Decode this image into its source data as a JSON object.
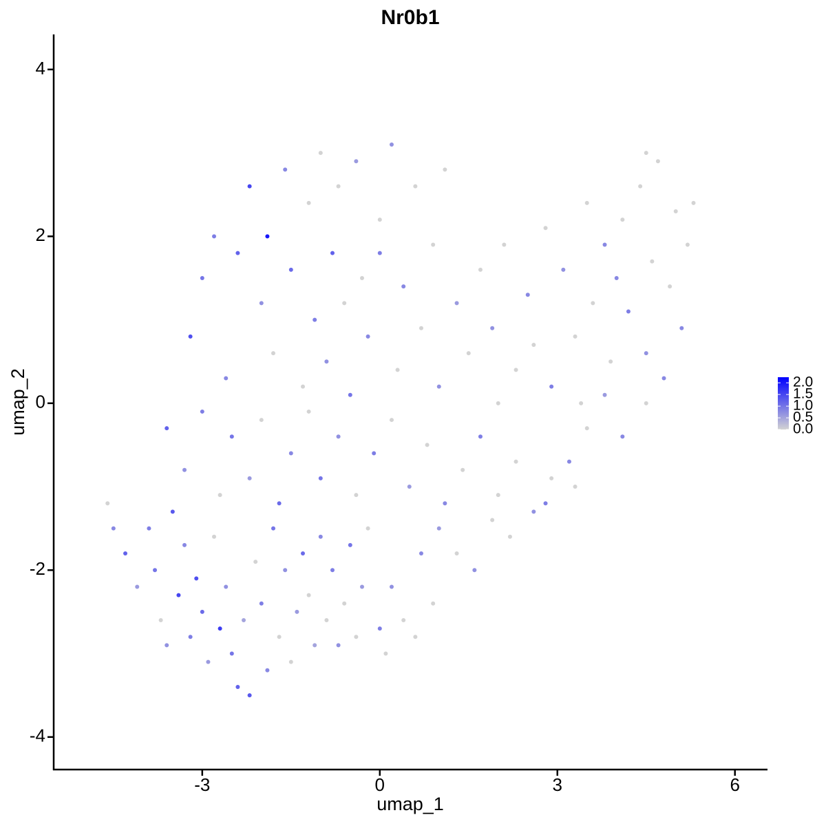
{
  "chart_data": {
    "type": "scatter",
    "title": "Nr0b1",
    "x_label": "umap_1",
    "y_label": "umap_2",
    "xlim": [
      -5.51,
      6.55
    ],
    "ylim": [
      -4.39,
      4.42
    ],
    "xticks": [
      -3,
      0,
      3,
      6
    ],
    "yticks": [
      -4,
      -2,
      0,
      2,
      4
    ],
    "color_low": "#d3d3d3",
    "color_high": "#0000ff",
    "colorlim": [
      0,
      2.24
    ],
    "colorticks": [
      {
        "value": 0,
        "label": "0.0"
      },
      {
        "value": 0.5,
        "label": "0.5"
      },
      {
        "value": 1,
        "label": "1.0"
      },
      {
        "value": 1.5,
        "label": "1.5"
      },
      {
        "value": 2,
        "label": "2.0"
      }
    ],
    "x": [
      -4.6,
      -4.5,
      -4.3,
      -4.1,
      -3.9,
      -3.8,
      -3.7,
      -3.6,
      -3.5,
      -3.4,
      -3.3,
      -3.2,
      -3.1,
      -3.0,
      -2.9,
      -2.8,
      -2.7,
      -2.6,
      -2.5,
      -2.4,
      -2.3,
      -2.2,
      -2.1,
      -2.0,
      -1.9,
      -1.8,
      -1.7,
      -1.6,
      -1.5,
      -1.4,
      -1.3,
      -1.2,
      -1.1,
      -1.0,
      -0.9,
      -0.8,
      -0.7,
      -0.6,
      -0.5,
      -0.4,
      -0.3,
      -0.2,
      0.0,
      0.1,
      0.2,
      0.4,
      0.6,
      0.7,
      0.9,
      1.0,
      -3.6,
      -3.3,
      -3.0,
      -2.7,
      -2.5,
      -2.2,
      -2.0,
      -1.7,
      -1.5,
      -1.2,
      -1.0,
      -0.7,
      -0.4,
      -0.1,
      0.2,
      0.5,
      0.8,
      1.1,
      1.4,
      1.7,
      2.0,
      2.3,
      2.6,
      2.9,
      3.2,
      3.5,
      3.8,
      4.1,
      4.5,
      1.3,
      1.6,
      1.9,
      2.2,
      2.8,
      3.3,
      -3.2,
      -3.0,
      -2.8,
      -2.6,
      -2.4,
      -2.2,
      -2.0,
      -1.9,
      -1.8,
      -1.6,
      -1.5,
      -1.3,
      -1.2,
      -1.1,
      -1.0,
      -0.9,
      -0.8,
      -0.7,
      -0.6,
      -0.5,
      -0.4,
      -0.3,
      -0.2,
      0.0,
      0.0,
      0.2,
      0.3,
      0.4,
      0.6,
      0.7,
      0.9,
      1.0,
      1.1,
      1.3,
      1.5,
      1.7,
      1.9,
      2.1,
      2.3,
      2.5,
      2.8,
      2.9,
      3.1,
      3.3,
      3.5,
      3.6,
      3.8,
      3.9,
      4.1,
      4.2,
      4.4,
      4.5,
      4.6,
      4.7,
      4.8,
      4.9,
      5.0,
      5.1,
      5.2,
      5.3,
      4.5,
      4.0,
      3.4,
      2.6,
      2.0
    ],
    "y": [
      -1.2,
      -1.5,
      -1.8,
      -2.2,
      -1.5,
      -2.0,
      -2.6,
      -2.9,
      -1.3,
      -2.3,
      -1.7,
      -2.8,
      -2.1,
      -2.5,
      -3.1,
      -1.6,
      -2.7,
      -2.2,
      -3.0,
      -3.4,
      -2.6,
      -3.5,
      -1.9,
      -2.4,
      -3.2,
      -1.5,
      -2.8,
      -2.0,
      -3.1,
      -2.5,
      -1.8,
      -2.3,
      -2.9,
      -1.6,
      -2.6,
      -2.0,
      -2.9,
      -2.4,
      -1.7,
      -2.8,
      -2.2,
      -1.5,
      -2.7,
      -3.0,
      -2.2,
      -2.6,
      -2.8,
      -1.8,
      -2.4,
      -1.5,
      -0.3,
      -0.8,
      -0.1,
      -1.1,
      -0.4,
      -0.9,
      -0.2,
      -1.2,
      -0.6,
      -0.1,
      -0.9,
      -0.4,
      -1.1,
      -0.6,
      -0.2,
      -1.0,
      -0.5,
      -1.2,
      -0.8,
      -0.4,
      -1.1,
      -0.7,
      -1.3,
      -0.9,
      -0.7,
      -0.3,
      0.1,
      -0.4,
      0.0,
      -1.8,
      -2.0,
      -1.4,
      -1.6,
      -1.2,
      -1.0,
      0.8,
      1.5,
      2.0,
      0.3,
      1.8,
      2.6,
      1.2,
      2.0,
      0.6,
      2.8,
      1.6,
      0.2,
      2.4,
      1.0,
      3.0,
      0.5,
      1.8,
      2.6,
      1.2,
      0.1,
      2.9,
      1.5,
      0.8,
      2.2,
      1.8,
      3.1,
      0.4,
      1.4,
      2.6,
      0.9,
      1.9,
      0.2,
      2.8,
      1.2,
      0.6,
      1.6,
      0.9,
      1.9,
      0.4,
      1.3,
      2.1,
      0.2,
      1.6,
      0.8,
      2.4,
      1.2,
      1.9,
      0.5,
      2.2,
      1.1,
      2.6,
      0.6,
      1.7,
      2.9,
      0.3,
      1.4,
      2.3,
      0.9,
      1.9,
      2.4,
      3.0,
      1.5,
      0.0,
      0.7,
      0.0
    ],
    "color_values": [
      0,
      0.8,
      1.2,
      0.6,
      0.9,
      1.0,
      0,
      0.7,
      1.3,
      1.5,
      0.8,
      0.9,
      1.4,
      1.1,
      0.6,
      0,
      1.6,
      0.7,
      1.0,
      1.2,
      0.5,
      1.3,
      0,
      0.9,
      0.8,
      1.0,
      0,
      0.7,
      0,
      0.6,
      1.1,
      0,
      0.5,
      0.8,
      0,
      0.9,
      0.7,
      0,
      1.0,
      0,
      0.6,
      0,
      0.9,
      0,
      0.7,
      0,
      0,
      0.8,
      0,
      0.6,
      1.2,
      0.7,
      0.9,
      0,
      1.0,
      0.6,
      0,
      1.1,
      0.8,
      0,
      1.0,
      0.7,
      0,
      0.9,
      0,
      0.6,
      0,
      0.8,
      0,
      0.9,
      0,
      0,
      0.7,
      0,
      0.8,
      0,
      0.6,
      0.8,
      0,
      0,
      0.7,
      0,
      0,
      0.9,
      0,
      1.4,
      1.0,
      0.9,
      0.8,
      1.2,
      1.5,
      0.7,
      2.0,
      0,
      0.8,
      1.1,
      0,
      0,
      0.9,
      0,
      0.7,
      1.2,
      0,
      0,
      1.0,
      0.6,
      0,
      0.8,
      0,
      0.9,
      0.7,
      0,
      0.8,
      0,
      0,
      0,
      0.7,
      0,
      0.6,
      0,
      0,
      0.7,
      0,
      0,
      0.8,
      0,
      0.9,
      0.7,
      0,
      0,
      0,
      0.8,
      0,
      0,
      0.9,
      0,
      0.7,
      0,
      0,
      0.8,
      0,
      0,
      0.8,
      0,
      0,
      0,
      0.8,
      0,
      0,
      0
    ]
  }
}
